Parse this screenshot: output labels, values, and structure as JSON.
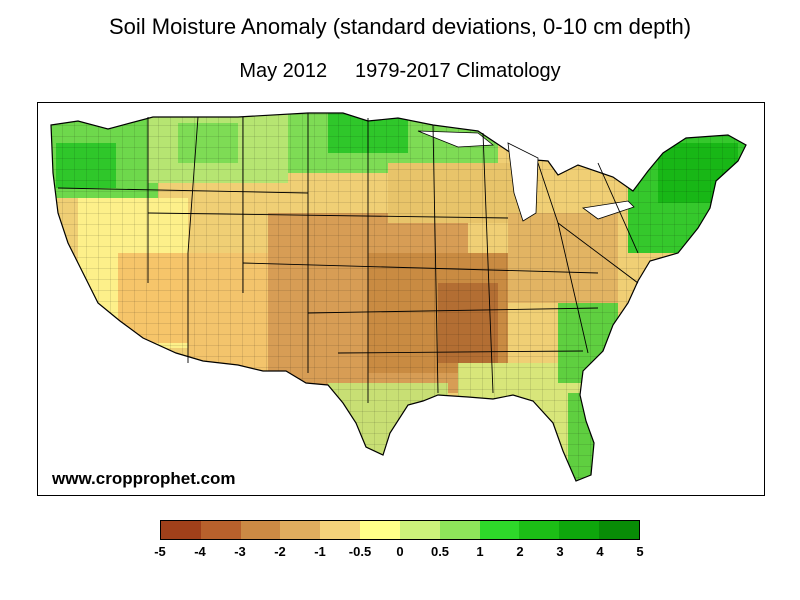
{
  "title": "Soil Moisture Anomaly (standard deviations, 0-10 cm depth)",
  "subtitle_period": "May 2012",
  "subtitle_climatology": "1979-2017 Climatology",
  "watermark": "www.cropprophet.com",
  "legend": {
    "ticks": [
      "-5",
      "-4",
      "-3",
      "-2",
      "-1",
      "-0.5",
      "0",
      "0.5",
      "1",
      "2",
      "3",
      "4",
      "5"
    ],
    "colors": [
      "#a0401a",
      "#b8612c",
      "#cc8a44",
      "#e0ac5e",
      "#f4d27a",
      "#ffff88",
      "#ccf27a",
      "#8ee45a",
      "#2ed82a",
      "#1cbe16",
      "#0ea60c",
      "#088c06",
      "#047204"
    ]
  },
  "map": {
    "region": "Contiguous United States",
    "classification": "county-level soil moisture anomaly",
    "dry_core": "Central Plains and Mid-Mississippi Valley",
    "wet_areas": [
      "Pacific Northwest",
      "Upper Great Lakes",
      "Northeast",
      "Southeast Atlantic coast",
      "Florida"
    ],
    "dry_color": "#c98b42",
    "wet_color": "#20c418"
  }
}
